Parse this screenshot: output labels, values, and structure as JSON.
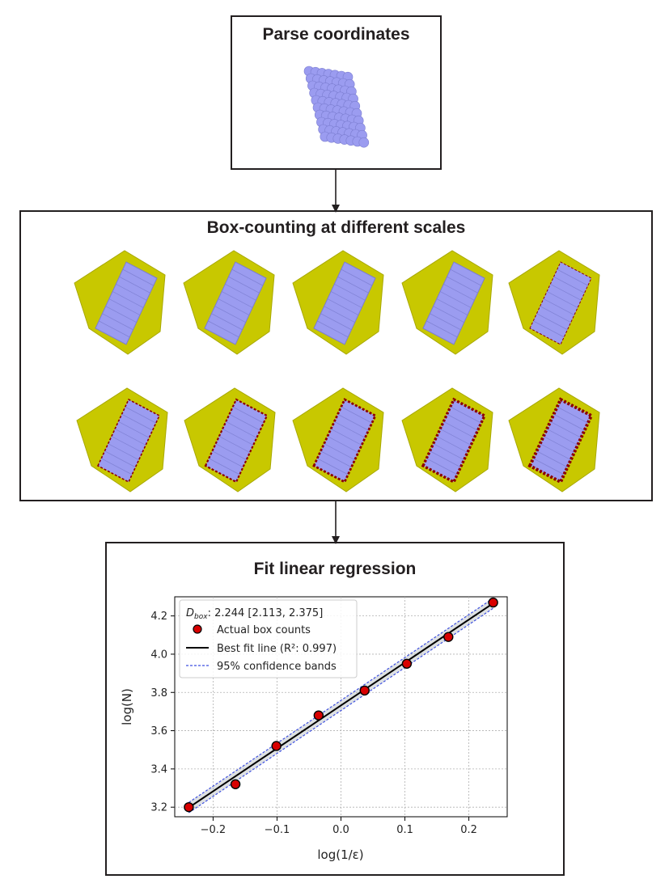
{
  "steps": {
    "parse": {
      "title": "Parse coordinates"
    },
    "boxcount": {
      "title": "Box-counting at different scales"
    },
    "fit": {
      "title": "Fit linear regression"
    }
  },
  "colors": {
    "atom": "#9b9cf0",
    "box": "#c8c800",
    "edge": "#8b0000",
    "frame": "#231f20",
    "fit_line": "#000000",
    "band": "#3d4fe0",
    "point": "#d80000"
  },
  "chart_data": {
    "type": "scatter",
    "title": "",
    "xlabel": "log(1/ε)",
    "ylabel": "log(N)",
    "xlim": [
      -0.26,
      0.26
    ],
    "ylim": [
      3.15,
      4.3
    ],
    "xticks": [
      -0.2,
      -0.1,
      0.0,
      0.1,
      0.2
    ],
    "xtick_labels": [
      "−0.2",
      "−0.1",
      "0.0",
      "0.1",
      "0.2"
    ],
    "yticks": [
      3.2,
      3.4,
      3.6,
      3.8,
      4.0,
      4.2
    ],
    "ytick_labels": [
      "3.2",
      "3.4",
      "3.6",
      "3.8",
      "4.0",
      "4.2"
    ],
    "grid": true,
    "legend_position": "top-left",
    "dbox_label": "D",
    "dbox_subscript": "box",
    "dbox_value": ": 2.244 [2.113, 2.375]",
    "series": [
      {
        "name": "Actual box counts",
        "kind": "points",
        "x": [
          -0.238,
          -0.165,
          -0.101,
          -0.035,
          0.037,
          0.103,
          0.168,
          0.238
        ],
        "y": [
          3.2,
          3.32,
          3.52,
          3.68,
          3.81,
          3.95,
          4.09,
          4.27
        ]
      },
      {
        "name": "Best fit line (R²: 0.997)",
        "kind": "line",
        "x": [
          -0.238,
          0.238
        ],
        "y": [
          3.198,
          4.266
        ]
      },
      {
        "name": "95% confidence bands",
        "kind": "band",
        "x": [
          -0.238,
          0.238
        ],
        "upper": [
          3.225,
          4.292
        ],
        "lower": [
          3.171,
          4.24
        ]
      }
    ]
  }
}
